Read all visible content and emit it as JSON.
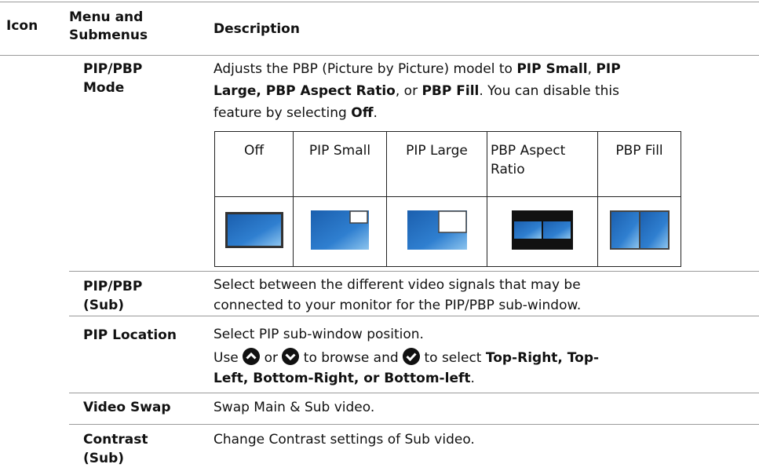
{
  "table": {
    "headers": [
      "Icon",
      "Menu and Submenus",
      "Description"
    ],
    "rows": [
      {
        "menu": "PIP/PBP Mode",
        "description": [
          [
            "Adjusts the PBP (Picture by Picture) model to ",
            "PIP Small",
            ", ",
            "PIP"
          ],
          [
            "Large, PBP Aspect Ratio",
            ", or ",
            "PBP Fill",
            ". You can disable this"
          ],
          [
            "feature by selecting ",
            "Off",
            "."
          ]
        ],
        "options": [
          "Off",
          "PIP Small",
          "PIP Large",
          "PBP Aspect Ratio",
          "PBP Fill"
        ]
      },
      {
        "menu": "PIP/PBP (Sub)",
        "description": [
          [
            "Select between the different video signals that may be"
          ],
          [
            "connected to your monitor for the PIP/PBP sub-window."
          ]
        ]
      },
      {
        "menu": "PIP Location",
        "description": [
          [
            "Select PIP sub-window position."
          ],
          [
            "Use",
            "or",
            "to browse and",
            " to select ",
            "Top-Right, Top-"
          ],
          [
            "Left, Bottom-Right, or Bottom-left",
            "."
          ]
        ]
      },
      {
        "menu": "Video Swap",
        "description": [
          [
            "Swap Main & Sub video."
          ]
        ]
      },
      {
        "menu": "Contrast (Sub)",
        "description": [
          [
            "Change Contrast settings of Sub video."
          ]
        ]
      }
    ]
  }
}
